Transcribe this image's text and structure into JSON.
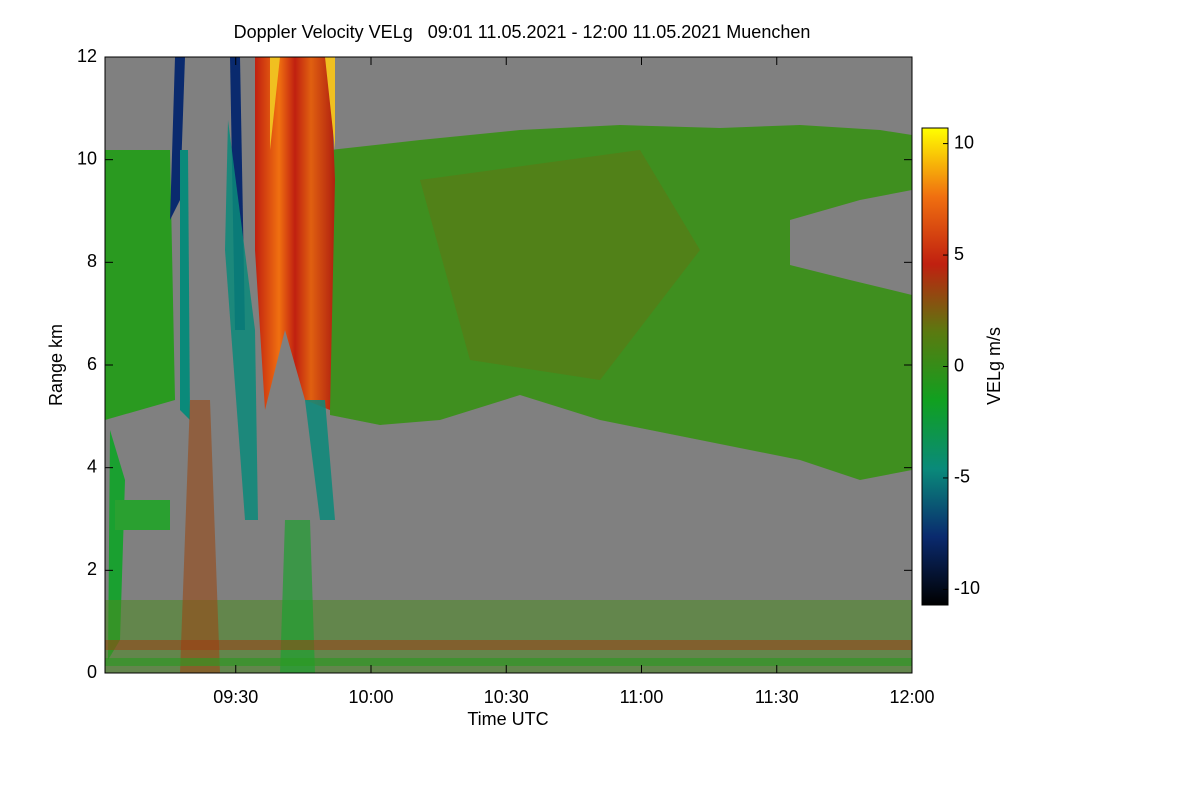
{
  "chart_data": {
    "type": "heatmap",
    "title": "Doppler Velocity VELg   09:01 11.05.2021 - 12:00 11.05.2021 Muenchen",
    "x_label": "Time UTC",
    "y_label": "Range km",
    "colorbar_label": "VELg m/s",
    "xlim": [
      "09:01",
      "12:00"
    ],
    "xticks": [
      "09:30",
      "10:00",
      "10:30",
      "11:00",
      "11:30",
      "12:00"
    ],
    "ylim": [
      0,
      12
    ],
    "yticks": [
      0,
      2,
      4,
      6,
      8,
      10,
      12
    ],
    "clim": [
      -10.7,
      10.7
    ],
    "cticks": [
      -10,
      -5,
      0,
      5,
      10
    ],
    "colormap": [
      "#000000",
      "#0a2a6e",
      "#0a8a7a",
      "#10a020",
      "#5a7a10",
      "#c02010",
      "#f07010",
      "#ffff00"
    ]
  }
}
